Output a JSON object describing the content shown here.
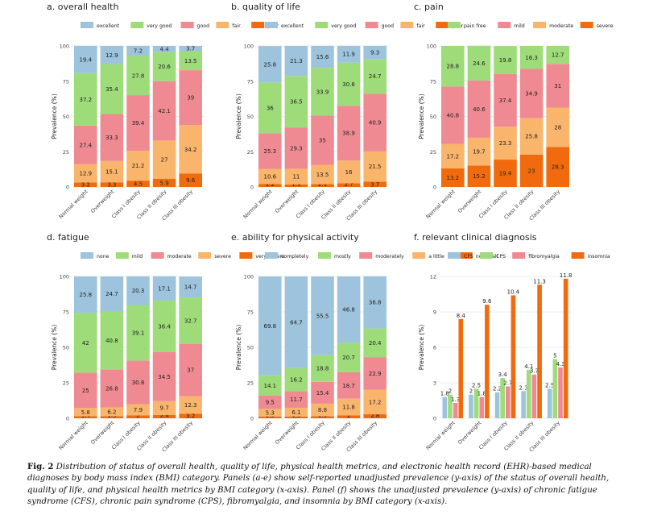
{
  "figure": {
    "caption_label": "Fig. 2",
    "caption_text": "Distribution of status of overall health, quality of life, physical health metrics, and electronic health record (EHR)-based medical diagnoses by body mass index (BMI) category. Panels (a-e) show self-reported unadjusted prevalence (y-axis) of the status of overall health, quality of life, and physical health metrics by BMI category (x-axis). Panel (f) shows the unadjusted prevalence (y-axis) of chronic fatigue syndrome (CFS), chronic pain syndrome (CPS), fibromyalgia, and insomnia by BMI category (x-axis)."
  },
  "colors": {
    "blue": "#9ec3dc",
    "green": "#9edb79",
    "red": "#ef8a92",
    "light_orange": "#f9b56b",
    "dark_orange": "#f16b0e"
  },
  "chart_data": [
    {
      "type": "bar",
      "stacked": true,
      "title": "a. overall health",
      "ylabel": "Prevalence (%)",
      "ylim": [
        0,
        100
      ],
      "yticks": [
        0,
        25,
        50,
        75,
        100
      ],
      "categories": [
        "Normal weight",
        "Overweight",
        "Class I obesity",
        "Class II obesity",
        "Class III obesity"
      ],
      "legend": [
        "excellent",
        "very good",
        "good",
        "fair",
        "poor"
      ],
      "series": [
        {
          "name": "poor",
          "color": "#f16b0e",
          "values": [
            3.2,
            3.3,
            4.5,
            5.9,
            9.6
          ]
        },
        {
          "name": "fair",
          "color": "#f9b56b",
          "values": [
            12.9,
            15.1,
            21.2,
            27,
            34.2
          ]
        },
        {
          "name": "good",
          "color": "#ef8a92",
          "values": [
            27.4,
            33.3,
            39.4,
            42.1,
            39
          ]
        },
        {
          "name": "very good",
          "color": "#9edb79",
          "values": [
            37.2,
            35.4,
            27.8,
            20.6,
            13.5
          ]
        },
        {
          "name": "excellent",
          "color": "#9ec3dc",
          "values": [
            19.4,
            12.9,
            7.2,
            4.4,
            3.7
          ]
        }
      ]
    },
    {
      "type": "bar",
      "stacked": true,
      "title": "b. quality of life",
      "ylabel": "Prevalence (%)",
      "ylim": [
        0,
        100
      ],
      "yticks": [
        0,
        25,
        50,
        75,
        100
      ],
      "categories": [
        "Normal weight",
        "Overweight",
        "Class I obesity",
        "Class II obesity",
        "Class III obesity"
      ],
      "legend": [
        "excellent",
        "very good",
        "good",
        "fair",
        "poor"
      ],
      "series": [
        {
          "name": "poor",
          "color": "#f16b0e",
          "values": [
            2.2,
            1.9,
            2.1,
            2.7,
            3.7
          ]
        },
        {
          "name": "fair",
          "color": "#f9b56b",
          "values": [
            10.6,
            11,
            13.5,
            16,
            21.5
          ]
        },
        {
          "name": "good",
          "color": "#ef8a92",
          "values": [
            25.3,
            29.3,
            35,
            38.9,
            40.9
          ]
        },
        {
          "name": "very good",
          "color": "#9edb79",
          "values": [
            36,
            36.5,
            33.9,
            30.6,
            24.7
          ]
        },
        {
          "name": "excellent",
          "color": "#9ec3dc",
          "values": [
            25.8,
            21.3,
            15.6,
            11.9,
            9.3
          ]
        }
      ]
    },
    {
      "type": "bar",
      "stacked": true,
      "title": "c. pain",
      "ylabel": "Prevalence (%)",
      "ylim": [
        0,
        100
      ],
      "yticks": [
        0,
        25,
        50,
        75,
        100
      ],
      "categories": [
        "Normal weight",
        "Overweight",
        "Class I obesity",
        "Class II obesity",
        "Class III obesity"
      ],
      "legend": [
        "pain free",
        "mild",
        "moderate",
        "severe"
      ],
      "series": [
        {
          "name": "severe",
          "color": "#f16b0e",
          "values": [
            13.2,
            15.2,
            19.4,
            23,
            28.3
          ]
        },
        {
          "name": "moderate",
          "color": "#f9b56b",
          "values": [
            17.2,
            19.7,
            23.3,
            25.8,
            28
          ]
        },
        {
          "name": "mild",
          "color": "#ef8a92",
          "values": [
            40.8,
            40.6,
            37.4,
            34.9,
            31
          ]
        },
        {
          "name": "pain free",
          "color": "#9edb79",
          "values": [
            28.8,
            24.6,
            19.8,
            16.3,
            12.7
          ]
        }
      ]
    },
    {
      "type": "bar",
      "stacked": true,
      "title": "d. fatigue",
      "ylabel": "Prevalence (%)",
      "ylim": [
        0,
        100
      ],
      "yticks": [
        0,
        25,
        50,
        75,
        100
      ],
      "categories": [
        "Normal weight",
        "Overweight",
        "Class I obesity",
        "Class II obesity",
        "Class III obesity"
      ],
      "legend": [
        "none",
        "mild",
        "moderate",
        "severe",
        "very severe"
      ],
      "series": [
        {
          "name": "very severe",
          "color": "#f16b0e",
          "values": [
            1.4,
            1.5,
            2,
            2.4,
            3.2
          ]
        },
        {
          "name": "severe",
          "color": "#f9b56b",
          "values": [
            5.8,
            6.2,
            7.9,
            9.7,
            12.3
          ]
        },
        {
          "name": "moderate",
          "color": "#ef8a92",
          "values": [
            25,
            26.8,
            30.8,
            34.5,
            37
          ]
        },
        {
          "name": "mild",
          "color": "#9edb79",
          "values": [
            42,
            40.8,
            39.1,
            36.4,
            32.7
          ]
        },
        {
          "name": "none",
          "color": "#9ec3dc",
          "values": [
            25.8,
            24.7,
            20.3,
            17.1,
            14.7
          ]
        }
      ]
    },
    {
      "type": "bar",
      "stacked": true,
      "title": "e. ability for physical activity",
      "ylabel": "Prevalence (%)",
      "ylim": [
        0,
        100
      ],
      "yticks": [
        0,
        25,
        50,
        75,
        100
      ],
      "categories": [
        "Normal weight",
        "Overweight",
        "Class I obesity",
        "Class II obesity",
        "Class III obesity"
      ],
      "legend": [
        "completely",
        "mostly",
        "moderately",
        "a little",
        "not at all"
      ],
      "series": [
        {
          "name": "not at all",
          "color": "#f16b0e",
          "values": [
            1.3,
            1.3,
            1.5,
            2,
            2.8
          ]
        },
        {
          "name": "a little",
          "color": "#f9b56b",
          "values": [
            5.3,
            6.1,
            8.8,
            11.8,
            17.2
          ]
        },
        {
          "name": "moderately",
          "color": "#ef8a92",
          "values": [
            9.5,
            11.7,
            15.4,
            18.7,
            22.9
          ]
        },
        {
          "name": "mostly",
          "color": "#9edb79",
          "values": [
            14.1,
            16.2,
            18.8,
            20.7,
            20.4
          ]
        },
        {
          "name": "completely",
          "color": "#9ec3dc",
          "values": [
            69.8,
            64.7,
            55.5,
            46.8,
            36.8
          ]
        }
      ]
    },
    {
      "type": "bar",
      "stacked": false,
      "title": "f. relevant clinical diagnosis",
      "ylabel": "Prevalence (%)",
      "ylim": [
        0,
        12
      ],
      "yticks": [
        0,
        3,
        6,
        9,
        12
      ],
      "categories": [
        "Normal weight",
        "Overweight",
        "Class I obesity",
        "Class II obesity",
        "Class III obesity"
      ],
      "legend": [
        "CFS",
        "CPS",
        "fibromyalgia",
        "insomnia"
      ],
      "series": [
        {
          "name": "CFS",
          "color": "#9ec3dc",
          "values": [
            1.8,
            2,
            2.2,
            2.3,
            2.5
          ]
        },
        {
          "name": "CPS",
          "color": "#9edb79",
          "values": [
            2,
            2.5,
            3.4,
            4.1,
            5
          ]
        },
        {
          "name": "fibromyalgia",
          "color": "#ef8a92",
          "values": [
            1.3,
            1.8,
            2.7,
            3.7,
            4.3
          ]
        },
        {
          "name": "insomnia",
          "color": "#f16b0e",
          "values": [
            8.4,
            9.6,
            10.4,
            11.3,
            11.8
          ]
        }
      ]
    }
  ]
}
